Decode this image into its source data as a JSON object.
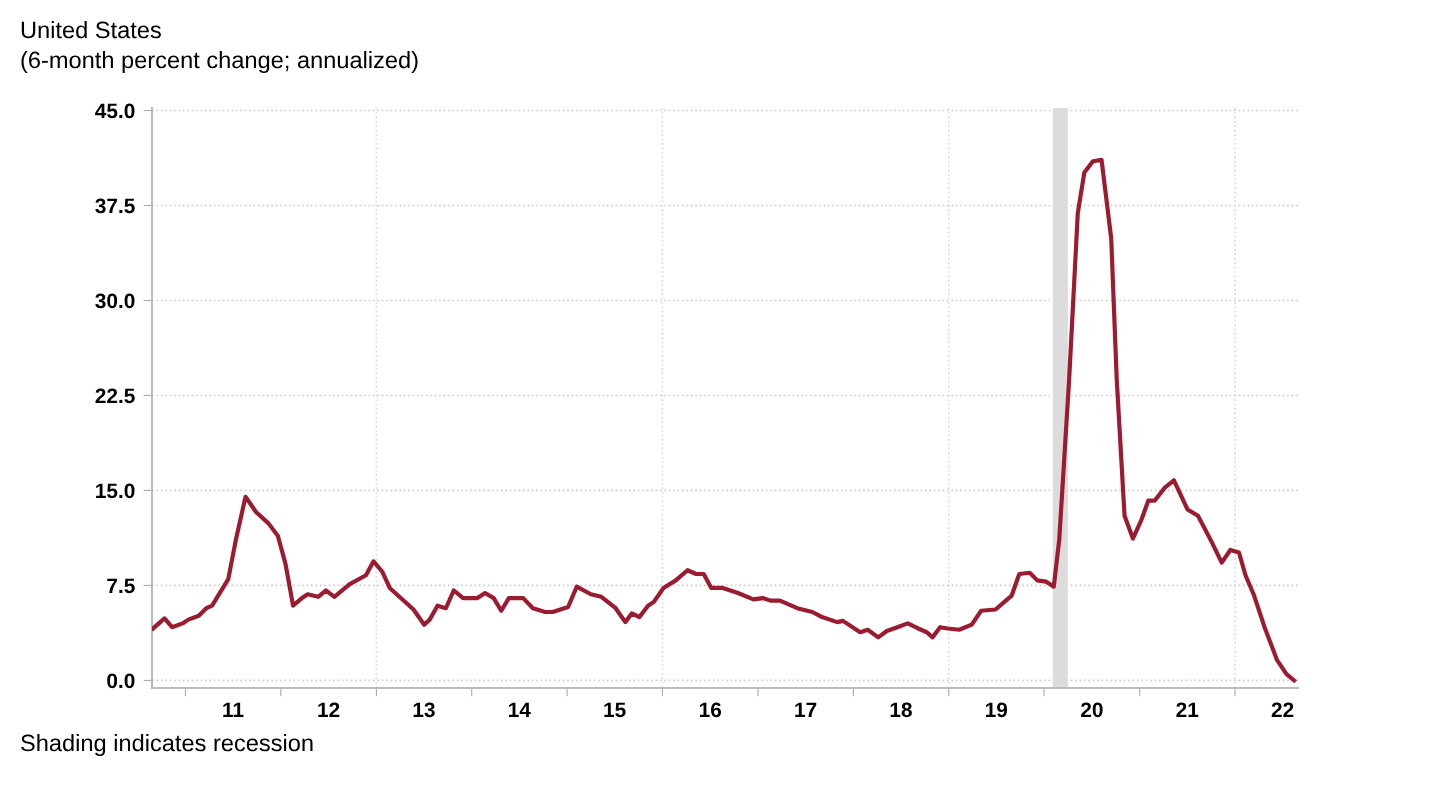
{
  "chart_data": {
    "type": "line",
    "title": "United States",
    "subtitle": "(6-month percent change; annualized)",
    "annotations": [
      "Shading indicates recession"
    ],
    "x": [
      "2010-08-30",
      "2010-10-13",
      "2010-11-11",
      "2010-12-21",
      "2011-01-12",
      "2011-02-21",
      "2011-03-22",
      "2011-04-13",
      "2011-06-14",
      "2011-07-13",
      "2011-08-19",
      "2011-09-28",
      "2011-11-15",
      "2011-12-21",
      "2012-01-19",
      "2012-02-17",
      "2012-03-22",
      "2012-04-13",
      "2012-05-23",
      "2012-06-22",
      "2012-07-24",
      "2012-08-23",
      "2012-09-21",
      "2012-11-22",
      "2012-12-21",
      "2013-01-23",
      "2013-02-21",
      "2013-05-23",
      "2013-07-03",
      "2013-07-24",
      "2013-08-23",
      "2013-09-24",
      "2013-10-24",
      "2013-11-29",
      "2014-01-23",
      "2014-02-21",
      "2014-03-26",
      "2014-04-24",
      "2014-05-23",
      "2014-07-17",
      "2014-08-23",
      "2014-10-09",
      "2014-11-07",
      "2015-01-05",
      "2015-02-07",
      "2015-04-02",
      "2015-05-12",
      "2015-07-06",
      "2015-08-12",
      "2015-09-06",
      "2015-10-05",
      "2015-11-07",
      "2015-11-29",
      "2016-01-05",
      "2016-02-21",
      "2016-04-06",
      "2016-05-09",
      "2016-06-07",
      "2016-07-06",
      "2016-08-19",
      "2016-10-16",
      "2016-12-14",
      "2017-01-19",
      "2017-02-17",
      "2017-03-26",
      "2017-05-31",
      "2017-07-28",
      "2017-09-03",
      "2017-10-31",
      "2017-11-22",
      "2018-01-27",
      "2018-02-25",
      "2018-04-06",
      "2018-05-09",
      "2018-06-18",
      "2018-07-28",
      "2018-09-06",
      "2018-10-09",
      "2018-10-31",
      "2018-11-29",
      "2018-12-28",
      "2019-02-10",
      "2019-03-30",
      "2019-05-05",
      "2019-06-29",
      "2019-08-30",
      "2019-09-28",
      "2019-11-07",
      "2019-12-06",
      "2020-01-08",
      "2020-02-07",
      "2020-02-28",
      "2020-04-06",
      "2020-05-09",
      "2020-06-03",
      "2020-07-06",
      "2020-08-08",
      "2020-09-14",
      "2020-10-05",
      "2020-11-04",
      "2020-12-06",
      "2021-01-08",
      "2021-02-03",
      "2021-02-28",
      "2021-04-06",
      "2021-05-12",
      "2021-07-03",
      "2021-08-12",
      "2021-10-02",
      "2021-11-11",
      "2021-12-14",
      "2022-01-16",
      "2022-02-10",
      "2022-03-15",
      "2022-04-24",
      "2022-06-11",
      "2022-07-17",
      "2022-08-15"
    ],
    "series": [
      {
        "color": "#9b1b30",
        "values": [
          4.1,
          4.9,
          4.2,
          4.5,
          4.8,
          5.1,
          5.7,
          5.9,
          8.0,
          11.1,
          14.5,
          13.3,
          12.4,
          11.4,
          9.2,
          5.9,
          6.5,
          6.8,
          6.6,
          7.1,
          6.6,
          7.1,
          7.6,
          8.3,
          9.4,
          8.6,
          7.3,
          5.6,
          4.4,
          4.8,
          5.9,
          5.7,
          7.1,
          6.5,
          6.5,
          6.9,
          6.5,
          5.5,
          6.5,
          6.5,
          5.7,
          5.4,
          5.4,
          5.8,
          7.4,
          6.8,
          6.6,
          5.7,
          4.6,
          5.3,
          5.0,
          5.9,
          6.2,
          7.3,
          7.9,
          8.7,
          8.4,
          8.4,
          7.3,
          7.3,
          6.9,
          6.4,
          6.5,
          6.3,
          6.3,
          5.7,
          5.4,
          5.0,
          4.6,
          4.7,
          3.8,
          4.0,
          3.4,
          3.9,
          4.2,
          4.5,
          4.1,
          3.8,
          3.4,
          4.2,
          4.1,
          4.0,
          4.4,
          5.5,
          5.6,
          6.7,
          8.4,
          8.5,
          7.9,
          7.8,
          7.4,
          11.1,
          23.8,
          36.9,
          40.1,
          41.0,
          41.1,
          34.9,
          23.8,
          13.0,
          11.2,
          12.7,
          14.2,
          14.2,
          15.2,
          15.8,
          13.5,
          13.0,
          11.0,
          9.3,
          10.3,
          10.1,
          8.3,
          6.7,
          4.2,
          1.6,
          0.5,
          0.0
        ]
      }
    ],
    "xlim": [
      "2010-08-26",
      "2022-08-30"
    ],
    "xticks": [
      {
        "value": "2011-01-01",
        "label": null
      },
      {
        "value": "2012-01-01",
        "label": null
      },
      {
        "value": "2013-01-01",
        "label": null
      },
      {
        "value": "2014-01-01",
        "label": null
      },
      {
        "value": "2015-01-01",
        "label": null
      },
      {
        "value": "2016-01-01",
        "label": null
      },
      {
        "value": "2017-01-01",
        "label": null
      },
      {
        "value": "2018-01-01",
        "label": null
      },
      {
        "value": "2019-01-01",
        "label": null
      },
      {
        "value": "2020-01-01",
        "label": null
      },
      {
        "value": "2021-01-01",
        "label": null
      },
      {
        "value": "2022-01-01",
        "label": null
      },
      {
        "value": "2011-07-02",
        "label": "11"
      },
      {
        "value": "2012-07-02",
        "label": "12"
      },
      {
        "value": "2013-07-02",
        "label": "13"
      },
      {
        "value": "2014-07-02",
        "label": "14"
      },
      {
        "value": "2015-07-02",
        "label": "15"
      },
      {
        "value": "2016-07-02",
        "label": "16"
      },
      {
        "value": "2017-07-02",
        "label": "17"
      },
      {
        "value": "2018-07-02",
        "label": "18"
      },
      {
        "value": "2019-07-02",
        "label": "19"
      },
      {
        "value": "2020-07-02",
        "label": "20"
      },
      {
        "value": "2021-07-02",
        "label": "21"
      },
      {
        "value": "2022-07-02",
        "label": "22"
      }
    ],
    "ylim": [
      -0.6,
      45.2
    ],
    "yticks": [
      {
        "value": 0,
        "label": "0.0"
      },
      {
        "value": 7.5,
        "label": "7.5"
      },
      {
        "value": 15,
        "label": "15.0"
      },
      {
        "value": 22.5,
        "label": "22.5"
      },
      {
        "value": 30,
        "label": "30.0"
      },
      {
        "value": 37.5,
        "label": "37.5"
      },
      {
        "value": 45,
        "label": "45.0"
      }
    ],
    "grid": "y",
    "ref_lines": [
      {
        "axis": "x",
        "value": "2013-01-01",
        "color": "#d9d9d9",
        "line_style": "dotted"
      },
      {
        "axis": "x",
        "value": "2016-01-01",
        "color": "#d9d9d9",
        "line_style": "dotted"
      },
      {
        "axis": "x",
        "value": "2019-01-01",
        "color": "#d9d9d9",
        "line_style": "dotted"
      },
      {
        "axis": "x",
        "value": "2022-01-01",
        "color": "#d9d9d9",
        "line_style": "dotted"
      }
    ],
    "bands": [
      {
        "axis": "x",
        "from": "2020-02-03",
        "to": "2020-04-01",
        "color": "#dcdcdc"
      }
    ],
    "line_style": "solid",
    "marker": "none"
  }
}
